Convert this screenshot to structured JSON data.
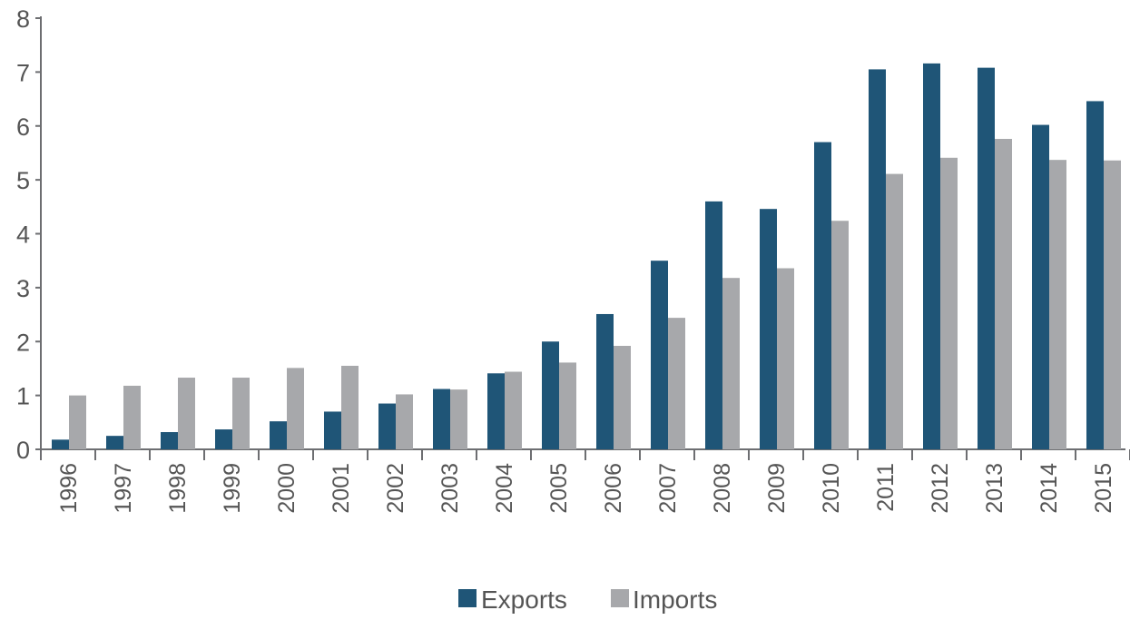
{
  "chart_data": {
    "type": "bar",
    "categories": [
      "1996",
      "1997",
      "1998",
      "1999",
      "2000",
      "2001",
      "2002",
      "2003",
      "2004",
      "2005",
      "2006",
      "2007",
      "2008",
      "2009",
      "2010",
      "2011",
      "2012",
      "2013",
      "2014",
      "2015"
    ],
    "series": [
      {
        "name": "Exports",
        "color": "#1f5577",
        "values": [
          0.18,
          0.25,
          0.32,
          0.37,
          0.52,
          0.7,
          0.85,
          1.12,
          1.41,
          2.0,
          2.51,
          3.5,
          4.6,
          4.46,
          5.7,
          7.05,
          7.16,
          7.08,
          6.02,
          6.46
        ]
      },
      {
        "name": "Imports",
        "color": "#a7a8ab",
        "values": [
          1.0,
          1.18,
          1.33,
          1.33,
          1.51,
          1.55,
          1.02,
          1.11,
          1.44,
          1.61,
          1.92,
          2.44,
          3.18,
          3.36,
          4.24,
          5.11,
          5.41,
          5.76,
          5.37,
          5.36
        ]
      }
    ],
    "ylim": [
      0,
      8
    ],
    "yticks": [
      0,
      1,
      2,
      3,
      4,
      5,
      6,
      7,
      8
    ],
    "grid": false,
    "legend": "bottom-center",
    "title": "",
    "xlabel": "",
    "ylabel": ""
  }
}
